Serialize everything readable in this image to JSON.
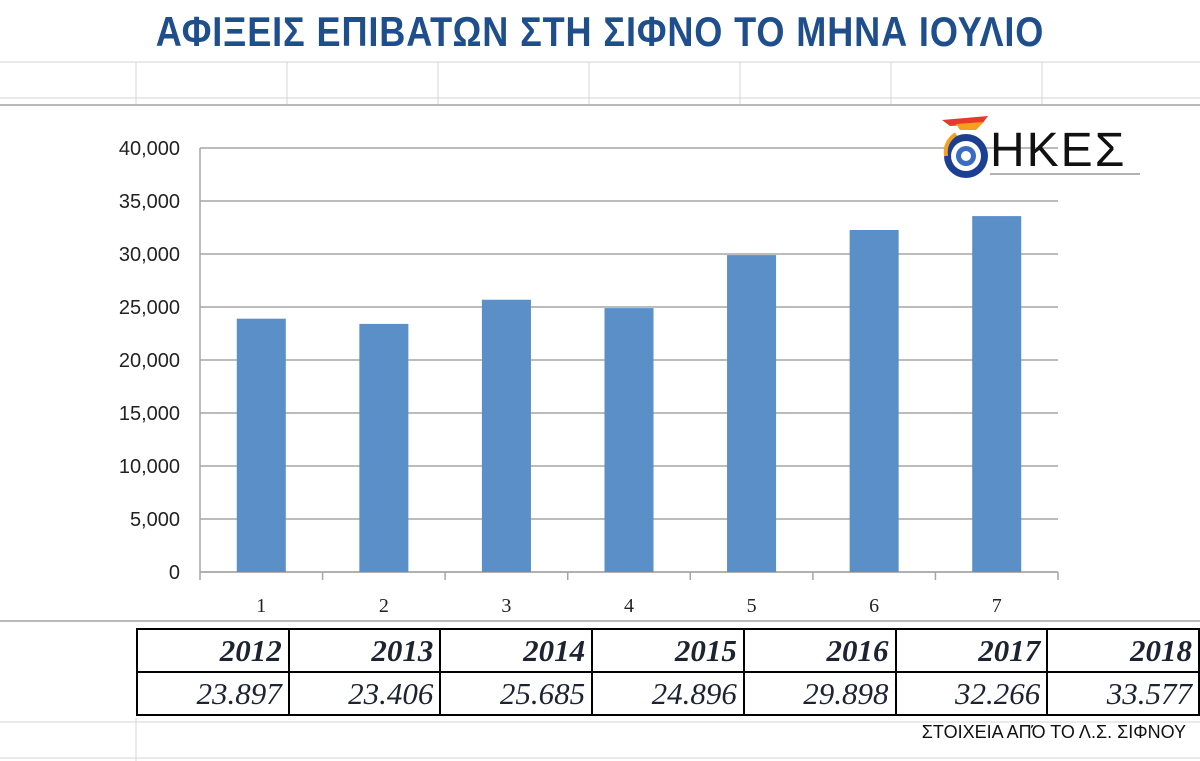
{
  "title": "ΑΦΙΞΕΙΣ ΕΠΙΒΑΤΩΝ ΣΤΗ ΣΙΦΝΟ ΤΟ ΜΗΝΑ ΙΟΥΛΙΟ",
  "logo": {
    "text": "ΗΚΕΣ",
    "icon": "dhkes-logo-icon"
  },
  "colors": {
    "bar": "#5b8fc7",
    "title": "#1f4e8c",
    "grid": "#a6a6a6"
  },
  "chart_data": {
    "type": "bar",
    "categories": [
      "1",
      "2",
      "3",
      "4",
      "5",
      "6",
      "7"
    ],
    "values": [
      23897,
      23406,
      25685,
      24896,
      29898,
      32266,
      33577
    ],
    "ylim": [
      0,
      40000
    ],
    "yticks": [
      0,
      5000,
      10000,
      15000,
      20000,
      25000,
      30000,
      35000,
      40000
    ],
    "ytick_labels": [
      "0",
      "5,000",
      "10,000",
      "15,000",
      "20,000",
      "25,000",
      "30,000",
      "35,000",
      "40,000"
    ],
    "grid": true,
    "legend": "none"
  },
  "table": {
    "years": [
      "2012",
      "2013",
      "2014",
      "2015",
      "2016",
      "2017",
      "2018"
    ],
    "values": [
      "23.897",
      "23.406",
      "25.685",
      "24.896",
      "29.898",
      "32.266",
      "33.577"
    ]
  },
  "source": "ΣΤΟΙΧΕΙΑ ΑΠΌ ΤΟ Λ.Σ. ΣΙΦΝΟΥ"
}
